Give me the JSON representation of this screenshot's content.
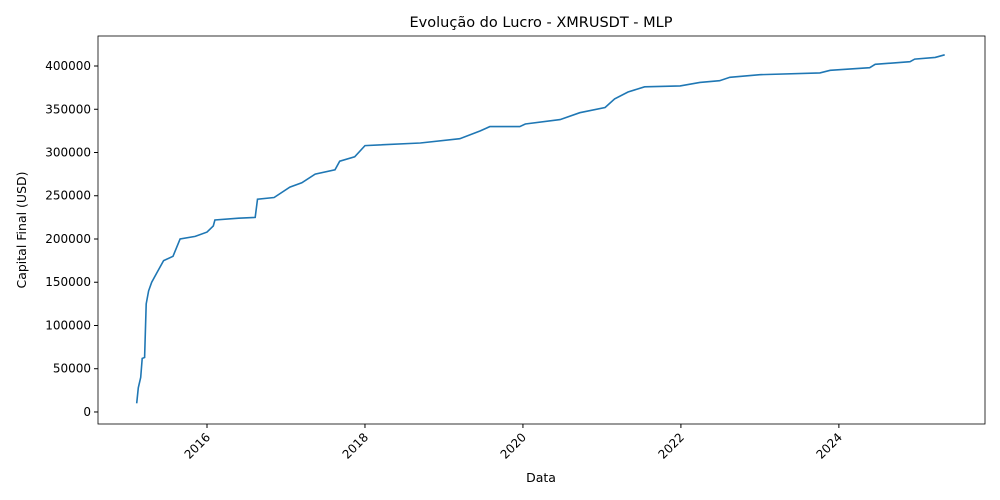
{
  "chart_data": {
    "type": "line",
    "title": "Evolução do Lucro - XMRUSDT - MLP",
    "x_label": "Data",
    "y_label": "Capital Final (USD)",
    "xlim": [
      2014.62,
      2025.85
    ],
    "xticks": [
      2016,
      2018,
      2020,
      2022,
      2024
    ],
    "ylim": [
      -13900,
      434700
    ],
    "yticks": [
      0,
      50000,
      100000,
      150000,
      200000,
      250000,
      300000,
      350000,
      400000
    ],
    "grid": false,
    "series": [
      {
        "name": "Capital Final",
        "color": "#1f77b4",
        "x": [
          2015.11,
          2015.13,
          2015.16,
          2015.18,
          2015.21,
          2015.23,
          2015.26,
          2015.3,
          2015.36,
          2015.45,
          2015.57,
          2015.66,
          2015.85,
          2016.0,
          2016.08,
          2016.1,
          2016.4,
          2016.61,
          2016.64,
          2016.85,
          2017.05,
          2017.2,
          2017.37,
          2017.62,
          2017.68,
          2017.87,
          2018.0,
          2018.7,
          2019.2,
          2019.46,
          2019.58,
          2019.96,
          2020.03,
          2020.47,
          2020.72,
          2021.04,
          2021.16,
          2021.33,
          2021.54,
          2021.99,
          2022.24,
          2022.49,
          2022.62,
          2023.0,
          2023.76,
          2023.89,
          2024.39,
          2024.46,
          2024.9,
          2024.96,
          2025.22,
          2025.34
        ],
        "values": [
          10000,
          28000,
          40000,
          62000,
          63000,
          125000,
          140000,
          150000,
          160000,
          175000,
          180000,
          200000,
          203000,
          208000,
          215000,
          222000,
          224000,
          225000,
          246000,
          248000,
          260000,
          265000,
          275000,
          280000,
          290000,
          295000,
          308000,
          311000,
          316000,
          325000,
          330000,
          330000,
          333000,
          338000,
          346000,
          352000,
          362000,
          370000,
          376000,
          377000,
          381000,
          383000,
          387000,
          390000,
          392000,
          395000,
          398000,
          402000,
          405000,
          408000,
          410000,
          413000
        ]
      }
    ]
  }
}
